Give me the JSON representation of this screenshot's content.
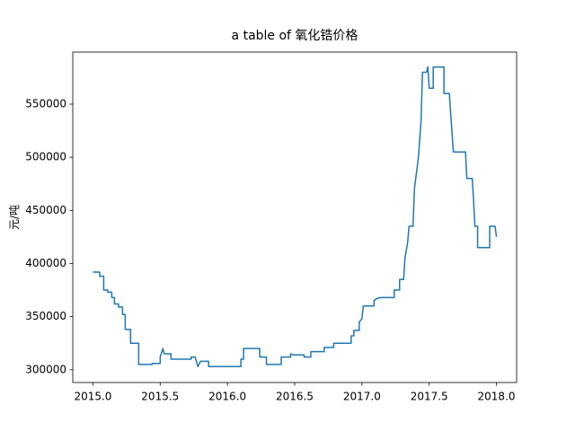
{
  "chart_data": {
    "type": "line",
    "title": "a table of 氧化锆价格",
    "y_label": "元/吨",
    "color": "#1f77b4",
    "x": [
      2015.0,
      2015.05,
      2015.05,
      2015.08,
      2015.08,
      2015.11,
      2015.11,
      2015.14,
      2015.14,
      2015.16,
      2015.16,
      2015.19,
      2015.19,
      2015.22,
      2015.22,
      2015.24,
      2015.24,
      2015.28,
      2015.28,
      2015.34,
      2015.34,
      2015.44,
      2015.44,
      2015.5,
      2015.5,
      2015.52,
      2015.53,
      2015.58,
      2015.58,
      2015.73,
      2015.73,
      2015.76,
      2015.78,
      2015.8,
      2015.86,
      2015.86,
      2016.1,
      2016.1,
      2016.12,
      2016.12,
      2016.24,
      2016.24,
      2016.29,
      2016.29,
      2016.4,
      2016.4,
      2016.47,
      2016.47,
      2016.49,
      2016.57,
      2016.57,
      2016.62,
      2016.62,
      2016.72,
      2016.72,
      2016.79,
      2016.79,
      2016.92,
      2016.92,
      2016.94,
      2016.94,
      2016.98,
      2016.98,
      2017.0,
      2017.01,
      2017.09,
      2017.09,
      2017.11,
      2017.14,
      2017.24,
      2017.24,
      2017.28,
      2017.28,
      2017.31,
      2017.32,
      2017.34,
      2017.35,
      2017.38,
      2017.39,
      2017.42,
      2017.44,
      2017.45,
      2017.48,
      2017.49,
      2017.5,
      2017.53,
      2017.53,
      2017.61,
      2017.61,
      2017.65,
      2017.66,
      2017.68,
      2017.77,
      2017.78,
      2017.82,
      2017.83,
      2017.84,
      2017.86,
      2017.86,
      2017.95,
      2017.95,
      2017.99,
      2018.0
    ],
    "values": [
      392000,
      392000,
      388000,
      388000,
      375000,
      375000,
      373000,
      373000,
      368000,
      368000,
      362000,
      362000,
      359000,
      359000,
      352000,
      352000,
      338000,
      338000,
      325000,
      325000,
      305000,
      305000,
      306000,
      306000,
      312000,
      320000,
      315000,
      315000,
      310000,
      310000,
      312000,
      312000,
      303000,
      308000,
      308000,
      303000,
      303000,
      310000,
      310000,
      320000,
      320000,
      312000,
      312000,
      305000,
      305000,
      312000,
      312000,
      315000,
      314000,
      314000,
      312000,
      312000,
      317000,
      317000,
      321000,
      321000,
      325000,
      325000,
      332000,
      332000,
      337000,
      337000,
      345000,
      348000,
      360000,
      360000,
      365000,
      367000,
      368000,
      368000,
      375000,
      375000,
      385000,
      385000,
      405000,
      420000,
      435000,
      435000,
      470000,
      500000,
      535000,
      580000,
      580000,
      585000,
      565000,
      565000,
      585000,
      585000,
      560000,
      560000,
      540000,
      505000,
      505000,
      480000,
      480000,
      460000,
      435000,
      435000,
      415000,
      415000,
      435000,
      435000,
      425000
    ],
    "xlim": [
      2014.85,
      2018.15
    ],
    "xticks": [
      {
        "value": 2015,
        "label": "2015.0"
      },
      2015.5,
      {
        "value": 2016,
        "label": "2016.0"
      },
      2016.5,
      {
        "value": 2017,
        "label": "2017.0"
      },
      2017.5,
      {
        "value": 2018,
        "label": "2018.0"
      }
    ],
    "ylim": [
      288000,
      599000
    ],
    "yticks": [
      300000,
      350000,
      400000,
      450000,
      500000,
      550000
    ]
  }
}
